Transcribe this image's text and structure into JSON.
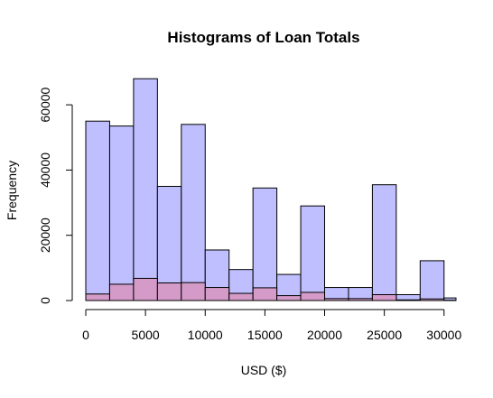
{
  "chart_data": {
    "type": "bar",
    "title": "Histograms of Loan Totals",
    "xlabel": "USD ($)",
    "ylabel": "Frequency",
    "bin_width": 2000,
    "x_bin_starts": [
      0,
      2000,
      4000,
      6000,
      8000,
      10000,
      12000,
      14000,
      16000,
      18000,
      20000,
      22000,
      24000,
      26000,
      28000,
      30000
    ],
    "xlim": [
      0,
      31000
    ],
    "ylim": [
      0,
      70000
    ],
    "x_ticks": [
      0,
      5000,
      10000,
      15000,
      20000,
      25000,
      30000
    ],
    "y_ticks": [
      0,
      20000,
      40000,
      60000
    ],
    "series": [
      {
        "color": "#BFBFFF",
        "values": [
          55000,
          53500,
          68000,
          35000,
          54000,
          15500,
          9500,
          34500,
          8000,
          29000,
          4000,
          4000,
          35500,
          1800,
          12200,
          800
        ]
      },
      {
        "color": "#D49BC8",
        "values": [
          2000,
          5000,
          6800,
          5400,
          5500,
          4000,
          2200,
          3900,
          1500,
          2500,
          600,
          600,
          1800,
          200,
          500,
          100
        ]
      }
    ]
  }
}
